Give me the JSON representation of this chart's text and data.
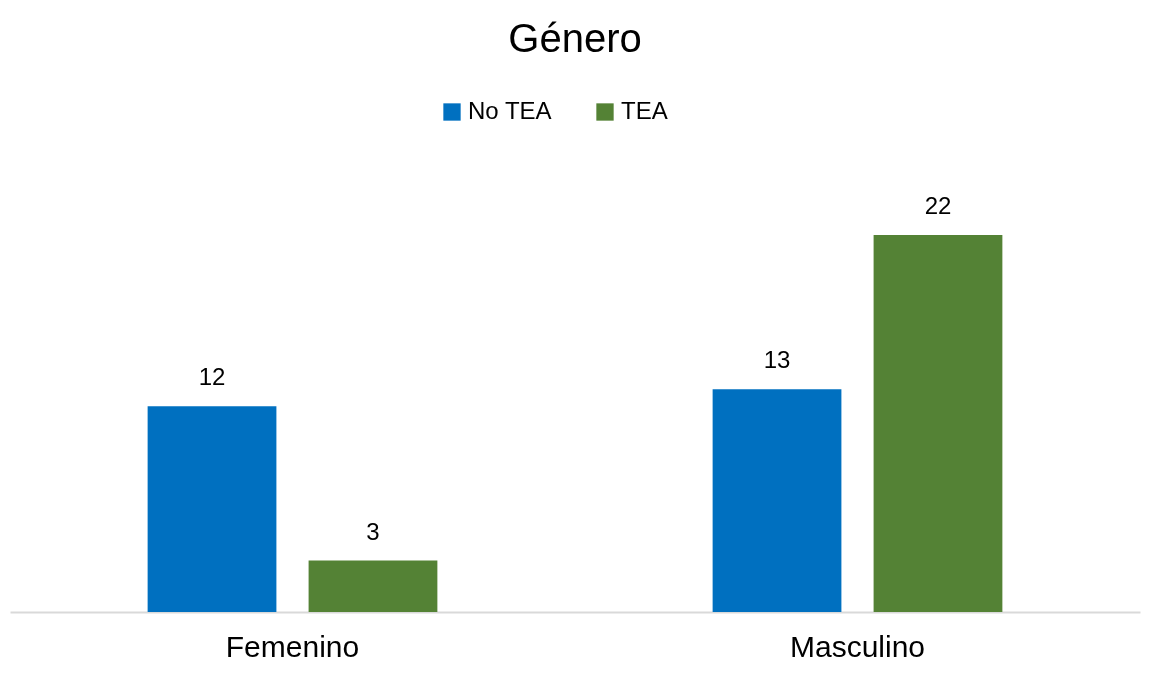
{
  "chart_data": {
    "type": "bar",
    "title": "Género",
    "categories": [
      "Femenino",
      "Masculino"
    ],
    "series": [
      {
        "name": "No TEA",
        "color": "#0070c0",
        "values": [
          12,
          13
        ]
      },
      {
        "name": "TEA",
        "color": "#548235",
        "values": [
          3,
          22
        ]
      }
    ],
    "data_labels": true,
    "legend": "top"
  }
}
